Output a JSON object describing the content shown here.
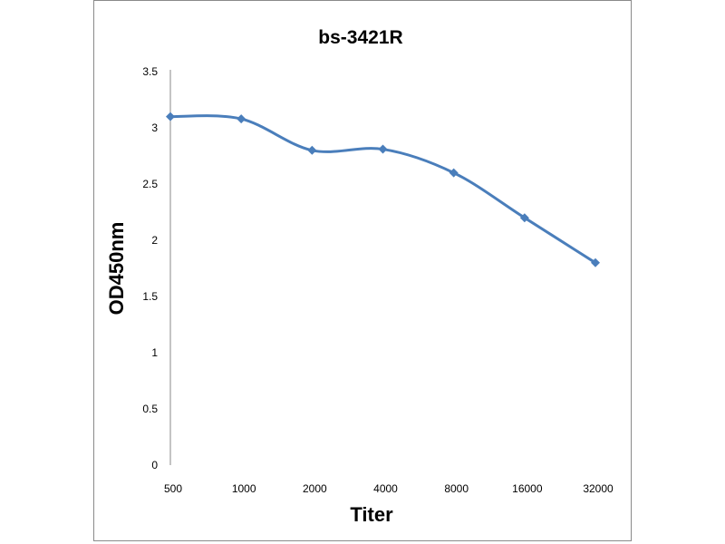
{
  "chart_data": {
    "type": "line",
    "title": "bs-3421R",
    "xlabel": "Titer",
    "ylabel": "OD450nm",
    "categories": [
      "500",
      "1000",
      "2000",
      "4000",
      "8000",
      "16000",
      "32000"
    ],
    "series": [
      {
        "name": "bs-3421R",
        "values": [
          3.1,
          3.08,
          2.8,
          2.81,
          2.6,
          2.2,
          1.8
        ],
        "color": "#4a7ebb"
      }
    ],
    "ylim": [
      0,
      3.5
    ],
    "yticks": [
      "0",
      "0.5",
      "1",
      "1.5",
      "2",
      "2.5",
      "3",
      "3.5"
    ],
    "grid": false,
    "legend": "none"
  }
}
